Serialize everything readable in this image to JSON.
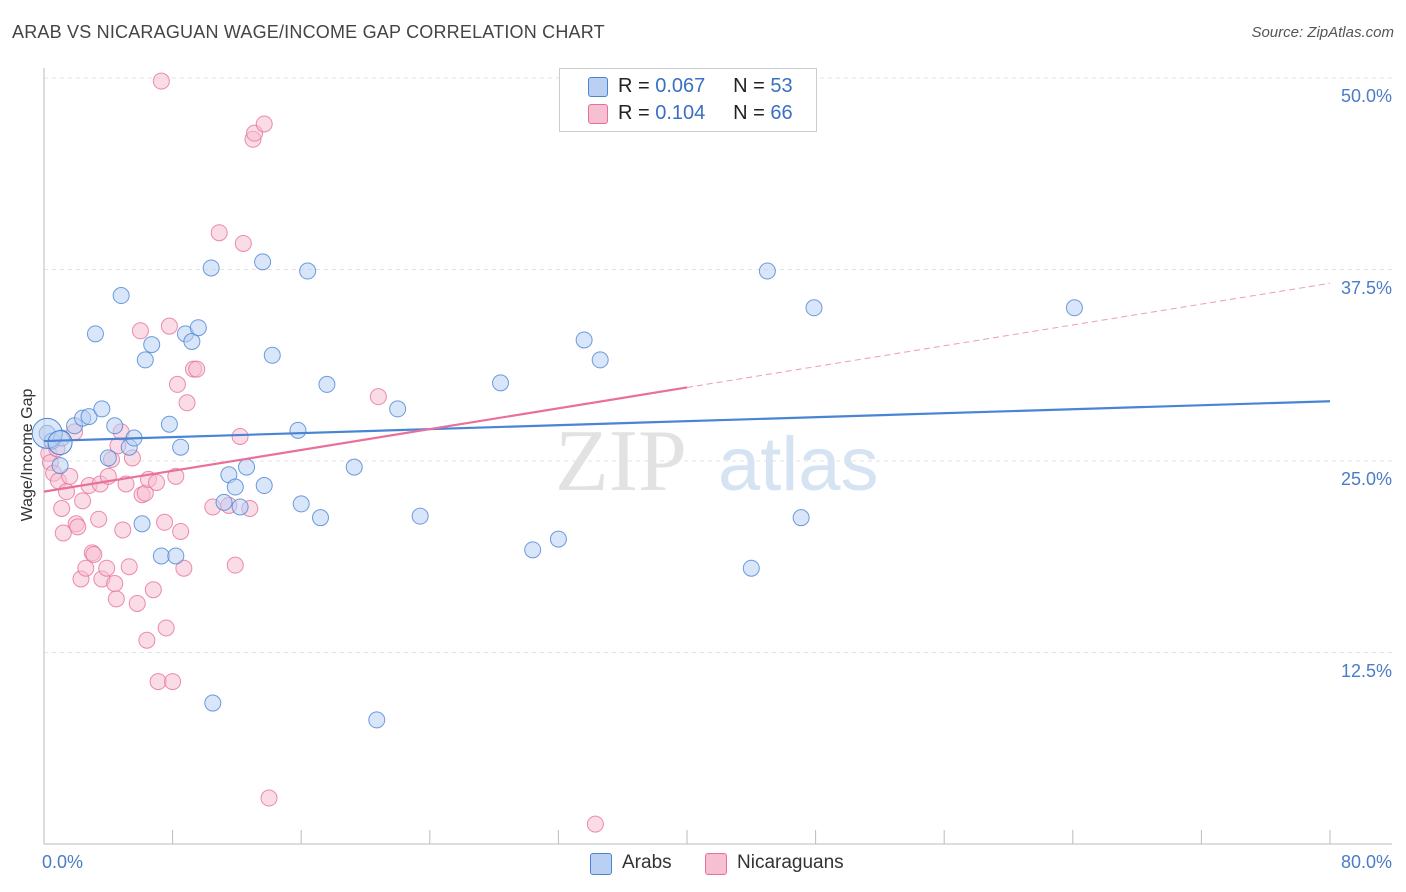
{
  "title": "ARAB VS NICARAGUAN WAGE/INCOME GAP CORRELATION CHART",
  "source": "Source: ZipAtlas.com",
  "colors": {
    "arabs": "#4a84d4",
    "nicaraguans": "#e8709a",
    "arabs_fill": "#b9d0f2",
    "nicaraguans_fill": "#f6c0d2",
    "tick_label": "#4a7cc7"
  },
  "legend_top": [
    {
      "r_label": "R =",
      "r_value": "0.067",
      "n_label": "N =",
      "n_value": "53"
    },
    {
      "r_label": "R =",
      "r_value": "0.104",
      "n_label": "N =",
      "n_value": "66"
    }
  ],
  "chart_data": {
    "type": "scatter",
    "title": "ARAB VS NICARAGUAN WAGE/INCOME GAP CORRELATION CHART",
    "xlabel": "",
    "ylabel": "Wage/Income Gap",
    "xlim": [
      0,
      80
    ],
    "ylim": [
      0,
      50
    ],
    "x_tick_labels": [
      "0.0%",
      "80.0%"
    ],
    "y_ticks": [
      12.5,
      25.0,
      37.5,
      50.0
    ],
    "y_tick_labels": [
      "12.5%",
      "25.0%",
      "37.5%",
      "50.0%"
    ],
    "grid": "horizontal dashed",
    "legend_placement": "bottom-center",
    "series": [
      {
        "name": "Arabs",
        "r": 0.067,
        "n": 53,
        "trend": {
          "x": [
            0,
            80
          ],
          "y": [
            26.3,
            28.9
          ]
        },
        "points": [
          [
            0.2,
            26.8
          ],
          [
            0.5,
            26.3
          ],
          [
            1.1,
            26.5
          ],
          [
            1.0,
            24.7
          ],
          [
            1.9,
            27.3
          ],
          [
            2.4,
            27.8
          ],
          [
            2.8,
            27.9
          ],
          [
            3.2,
            33.3
          ],
          [
            3.6,
            28.4
          ],
          [
            4.0,
            25.2
          ],
          [
            4.4,
            27.3
          ],
          [
            4.8,
            35.8
          ],
          [
            5.3,
            25.9
          ],
          [
            5.6,
            26.5
          ],
          [
            6.1,
            20.9
          ],
          [
            6.3,
            31.6
          ],
          [
            6.7,
            32.6
          ],
          [
            7.3,
            18.8
          ],
          [
            7.8,
            27.4
          ],
          [
            8.2,
            18.8
          ],
          [
            8.5,
            25.9
          ],
          [
            8.8,
            33.3
          ],
          [
            9.2,
            32.8
          ],
          [
            9.6,
            33.7
          ],
          [
            10.4,
            37.6
          ],
          [
            10.5,
            9.2
          ],
          [
            11.2,
            22.3
          ],
          [
            11.5,
            24.1
          ],
          [
            11.9,
            23.3
          ],
          [
            12.2,
            22.0
          ],
          [
            12.6,
            24.6
          ],
          [
            13.6,
            38.0
          ],
          [
            13.7,
            23.4
          ],
          [
            14.2,
            31.9
          ],
          [
            15.8,
            27.0
          ],
          [
            16.0,
            22.2
          ],
          [
            16.4,
            37.4
          ],
          [
            17.2,
            21.3
          ],
          [
            17.6,
            30.0
          ],
          [
            19.3,
            24.6
          ],
          [
            20.7,
            8.1
          ],
          [
            22.0,
            28.4
          ],
          [
            23.4,
            21.4
          ],
          [
            28.4,
            30.1
          ],
          [
            30.4,
            19.2
          ],
          [
            32.0,
            19.9
          ],
          [
            33.6,
            32.9
          ],
          [
            34.6,
            31.6
          ],
          [
            44.0,
            18.0
          ],
          [
            45.0,
            37.4
          ],
          [
            47.1,
            21.3
          ],
          [
            47.9,
            35.0
          ],
          [
            64.1,
            35.0
          ]
        ]
      },
      {
        "name": "Nicaraguans",
        "r": 0.104,
        "n": 66,
        "trend": {
          "x": [
            0,
            40
          ],
          "y": [
            23.0,
            29.8
          ],
          "dashed_x": [
            40,
            80
          ],
          "dashed_y": [
            29.8,
            36.6
          ]
        },
        "points": [
          [
            0.3,
            25.5
          ],
          [
            0.4,
            24.9
          ],
          [
            0.6,
            24.2
          ],
          [
            0.8,
            25.8
          ],
          [
            0.9,
            23.7
          ],
          [
            1.1,
            21.9
          ],
          [
            1.2,
            20.3
          ],
          [
            1.4,
            23.0
          ],
          [
            1.6,
            24.0
          ],
          [
            1.9,
            26.9
          ],
          [
            2.0,
            20.9
          ],
          [
            2.1,
            20.7
          ],
          [
            2.3,
            17.3
          ],
          [
            2.4,
            22.4
          ],
          [
            2.6,
            18.0
          ],
          [
            2.8,
            23.4
          ],
          [
            3.0,
            19.0
          ],
          [
            3.1,
            18.9
          ],
          [
            3.4,
            21.2
          ],
          [
            3.5,
            23.5
          ],
          [
            3.6,
            17.3
          ],
          [
            3.9,
            18.0
          ],
          [
            4.0,
            24.0
          ],
          [
            4.2,
            25.1
          ],
          [
            4.4,
            17.0
          ],
          [
            4.5,
            16.0
          ],
          [
            4.6,
            26.0
          ],
          [
            4.8,
            26.9
          ],
          [
            4.9,
            20.5
          ],
          [
            5.1,
            23.5
          ],
          [
            5.3,
            18.1
          ],
          [
            5.5,
            25.2
          ],
          [
            5.8,
            15.7
          ],
          [
            6.0,
            33.5
          ],
          [
            6.1,
            22.8
          ],
          [
            6.3,
            22.9
          ],
          [
            6.4,
            13.3
          ],
          [
            6.5,
            23.8
          ],
          [
            6.8,
            16.6
          ],
          [
            7.0,
            23.6
          ],
          [
            7.1,
            10.6
          ],
          [
            7.3,
            49.8
          ],
          [
            7.5,
            21.0
          ],
          [
            7.6,
            14.1
          ],
          [
            7.8,
            33.8
          ],
          [
            8.0,
            10.6
          ],
          [
            8.2,
            24.0
          ],
          [
            8.3,
            30.0
          ],
          [
            8.5,
            20.4
          ],
          [
            8.7,
            18.0
          ],
          [
            8.9,
            28.8
          ],
          [
            9.3,
            31.0
          ],
          [
            9.5,
            31.0
          ],
          [
            10.5,
            22.0
          ],
          [
            10.9,
            39.9
          ],
          [
            11.9,
            18.2
          ],
          [
            12.2,
            26.6
          ],
          [
            12.4,
            39.2
          ],
          [
            12.8,
            21.9
          ],
          [
            13.0,
            46.0
          ],
          [
            13.1,
            46.4
          ],
          [
            13.7,
            47.0
          ],
          [
            14.0,
            3.0
          ],
          [
            20.8,
            29.2
          ],
          [
            34.3,
            1.3
          ],
          [
            11.5,
            22.1
          ]
        ]
      }
    ]
  }
}
